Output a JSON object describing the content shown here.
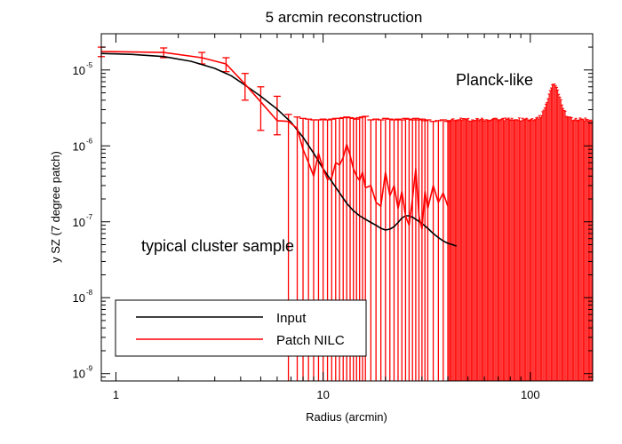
{
  "chart_data": {
    "type": "line",
    "title": "5 arcmin reconstruction",
    "xlabel": "Radius (arcmin)",
    "ylabel": "y SZ (7 degree patch)",
    "xscale": "log",
    "yscale": "log",
    "xlim": [
      0.85,
      200
    ],
    "ylim": [
      8e-10,
      3e-05
    ],
    "x_ticks": [
      {
        "value": 1,
        "label": "1"
      },
      {
        "value": 10,
        "label": "10"
      },
      {
        "value": 100,
        "label": "100"
      }
    ],
    "y_ticks": [
      {
        "value": 1e-09,
        "base": "10",
        "exp": "-9"
      },
      {
        "value": 1e-08,
        "base": "10",
        "exp": "-8"
      },
      {
        "value": 1e-07,
        "base": "10",
        "exp": "-7"
      },
      {
        "value": 1e-06,
        "base": "10",
        "exp": "-6"
      },
      {
        "value": 1e-05,
        "base": "10",
        "exp": "-5"
      }
    ],
    "annotations": [
      {
        "text": "Planck-like",
        "x": 45,
        "y": 6.8e-06
      },
      {
        "text": "typical cluster sample",
        "x": 1.3,
        "y": 4.4e-08
      }
    ],
    "legend": {
      "placement": "bottom-left",
      "entries": [
        {
          "label": "Input",
          "color": "#000000"
        },
        {
          "label": "Patch NILC",
          "color": "#ff0000"
        }
      ]
    },
    "series": [
      {
        "name": "Input",
        "color": "#000000",
        "x": [
          0.85,
          1.2,
          1.7,
          2.3,
          3.0,
          3.6,
          4.2,
          5.0,
          6.0,
          7.0,
          8.0,
          9.0,
          10.0,
          11.0,
          12.0,
          13.0,
          14.0,
          15.0,
          16.0,
          17.0,
          18.0,
          19.0,
          20.0,
          21.0,
          22.0,
          23.0,
          24.0,
          25.0,
          26.0,
          27.0,
          28.0,
          30.0,
          32.0,
          34.0,
          36.0,
          38.0,
          40.0,
          42.0,
          44.0
        ],
        "y": [
          1.65e-05,
          1.6e-05,
          1.5e-05,
          1.3e-05,
          1.05e-05,
          8.4e-06,
          6.3e-06,
          4.5e-06,
          3.05e-06,
          2.05e-06,
          1.3e-06,
          8e-07,
          5e-07,
          3.4e-07,
          2.4e-07,
          1.75e-07,
          1.4e-07,
          1.2e-07,
          1.08e-07,
          9.8e-08,
          9e-08,
          8.2e-08,
          7.8e-08,
          8e-08,
          8.6e-08,
          9.8e-08,
          1.12e-07,
          1.2e-07,
          1.2e-07,
          1.15e-07,
          1.08e-07,
          9.5e-08,
          8.2e-08,
          7e-08,
          6.2e-08,
          5.6e-08,
          5.2e-08,
          5e-08,
          4.8e-08
        ]
      },
      {
        "name": "Patch NILC",
        "color": "#ff0000",
        "x": [
          0.85,
          1.7,
          2.6,
          3.4,
          4.2,
          5.0,
          6.0,
          6.8,
          7.5,
          8.0,
          8.5,
          9.0,
          9.5,
          10.0,
          10.5,
          11.0,
          11.5,
          12.0,
          12.5,
          13.0,
          13.5,
          14.0,
          14.5,
          15.0,
          15.5,
          16.0,
          17.0,
          18.0,
          19.0,
          20.0,
          21.0,
          22.0,
          23.0,
          24.0,
          25.0,
          26.0,
          27.0,
          28.0,
          29.0,
          30.0,
          31.0,
          32.0,
          34.0,
          36.0,
          38.0,
          40.0
        ],
        "y": [
          1.75e-05,
          1.7e-05,
          1.45e-05,
          1.2e-05,
          6.5e-06,
          3.8e-06,
          2.15e-06,
          2.1e-06,
          1.7e-06,
          9e-07,
          6e-07,
          4e-07,
          8e-07,
          5e-07,
          3.6e-07,
          3.8e-07,
          6e-07,
          5.6e-07,
          7e-07,
          1.05e-06,
          7.5e-07,
          5e-07,
          4e-07,
          3.5e-07,
          4.5e-07,
          2.8e-07,
          3e-07,
          1.8e-07,
          1.6e-07,
          4.5e-07,
          2.2e-07,
          3e-07,
          1.5e-07,
          2.5e-07,
          1.2e-07,
          9e-08,
          2e-07,
          5e-07,
          1.2e-07,
          8e-08,
          2.5e-07,
          1.5e-07,
          3e-07,
          1.8e-07,
          2.4e-07,
          1.6e-07
        ],
        "err_x": [
          0.85,
          1.7,
          2.6,
          3.4,
          4.2,
          5.0,
          6.0,
          6.8,
          7.5,
          8.0,
          8.5,
          9.0,
          9.5,
          10.0,
          10.5,
          11.0,
          11.5,
          12.0,
          12.5,
          13.0,
          13.5,
          14.0,
          14.5,
          15.0,
          15.5,
          16.0,
          17.0,
          18.0,
          19.0,
          20.0,
          21.0,
          22.0,
          23.0,
          24.0,
          25.0,
          26.0,
          27.0,
          28.0,
          29.0,
          30.0,
          31.0,
          32.0,
          34.0,
          36.0,
          38.0,
          40.0
        ],
        "err_hi": [
          2e-05,
          1.95e-05,
          1.7e-05,
          1.45e-05,
          9e-06,
          6e-06,
          4.5e-06,
          2.6e-06,
          2.4e-06,
          2.3e-06,
          2.25e-06,
          2.2e-06,
          2.2e-06,
          2.25e-06,
          2.2e-06,
          2.25e-06,
          2.3e-06,
          2.3e-06,
          2.35e-06,
          2.4e-06,
          2.35e-06,
          2.3e-06,
          2.25e-06,
          2.35e-06,
          2.4e-06,
          2.45e-06,
          2.2e-06,
          2.25e-06,
          2.2e-06,
          2.3e-06,
          2.25e-06,
          2.2e-06,
          2.25e-06,
          2.2e-06,
          2.3e-06,
          2.25e-06,
          2.2e-06,
          2.3e-06,
          2.2e-06,
          2.25e-06,
          2.15e-06,
          2.2e-06,
          2.1e-06,
          2.15e-06,
          2.2e-06,
          2.1e-06
        ],
        "err_lo": [
          1.5e-05,
          1.45e-05,
          1.2e-05,
          9.5e-06,
          4e-06,
          1.6e-06,
          1.4e-06,
          8e-10,
          8e-10,
          8e-10,
          8e-10,
          8e-10,
          8e-10,
          8e-10,
          8e-10,
          8e-10,
          8e-10,
          8e-10,
          8e-10,
          8e-10,
          8e-10,
          8e-10,
          8e-10,
          8e-10,
          8e-10,
          8e-10,
          8e-10,
          8e-10,
          8e-10,
          8e-10,
          8e-10,
          8e-10,
          8e-10,
          8e-10,
          8e-10,
          8e-10,
          8e-10,
          8e-10,
          8e-10,
          8e-10,
          8e-10,
          8e-10,
          8e-10,
          8e-10,
          8e-10,
          8e-10
        ]
      }
    ],
    "dense_error_region": {
      "series": "Patch NILC",
      "x_range": [
        40,
        200
      ],
      "upper_level": 2.1e-06,
      "bump_near_x": 130,
      "bump_peak": 6e-06
    }
  }
}
